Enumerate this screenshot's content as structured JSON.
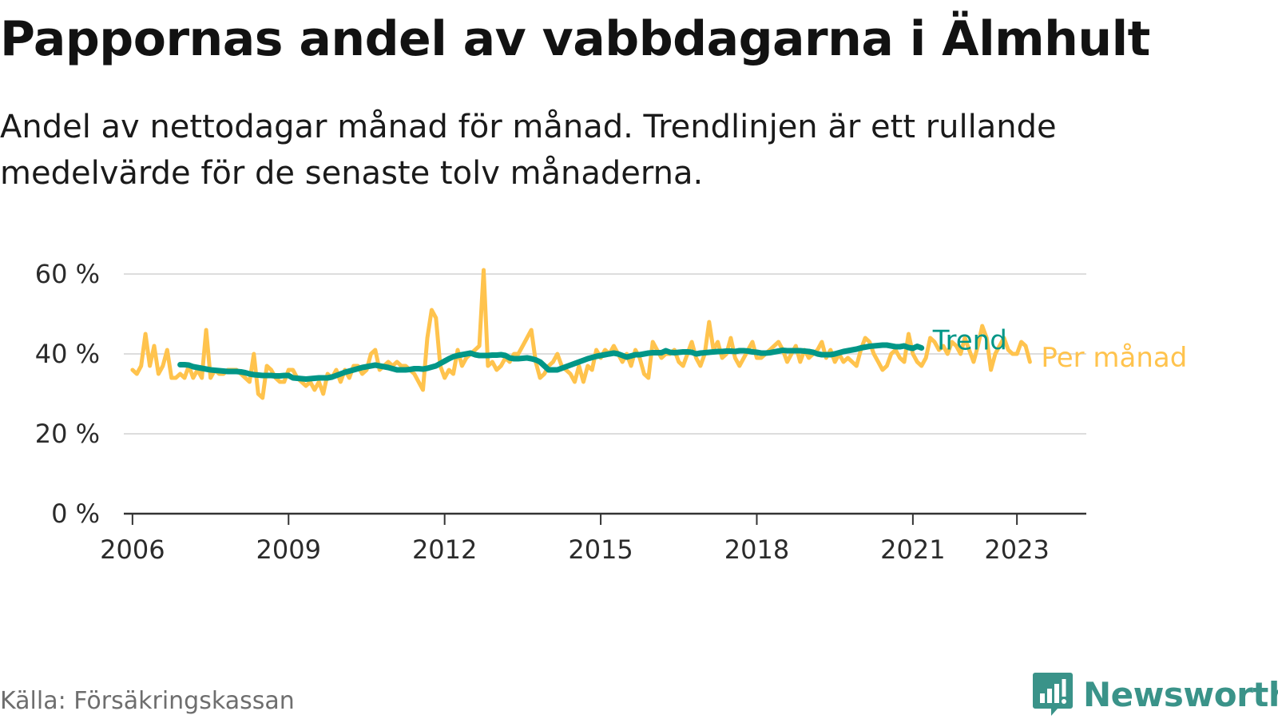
{
  "title": "Pappornas andel av vabbdagarna i Älmhult",
  "subtitle": "Andel av nettodagar månad för månad. Trendlinjen är ett rullande medelvärde för de senaste tolv månaderna.",
  "source": "Källa: Försäkringskassan",
  "brand": {
    "name": "Newsworthy",
    "icon": "newsworthy-logo-icon",
    "color": "#3a9389"
  },
  "chart_data": {
    "type": "line",
    "title": "Pappornas andel av vabbdagarna i Älmhult",
    "subtitle": "Andel av nettodagar månad för månad. Trendlinjen är ett rullande medelvärde för de senaste tolv månaderna.",
    "xlabel": "",
    "ylabel": "",
    "ylim": [
      0,
      60
    ],
    "y_ticks": [
      0,
      20,
      40,
      60
    ],
    "y_tick_labels": [
      "0 %",
      "20 %",
      "40 %",
      "60 %"
    ],
    "x_range": [
      "2005-11",
      "2024-05"
    ],
    "x_ticks": [
      "2006-01",
      "2009-01",
      "2012-01",
      "2015-01",
      "2018-01",
      "2021-01",
      "2023-01"
    ],
    "x_tick_labels": [
      "2006",
      "2009",
      "2012",
      "2015",
      "2018",
      "2021",
      "2023"
    ],
    "grid": "horizontal",
    "legend": "inline labels at line ends",
    "series": [
      {
        "name": "Per månad",
        "color": "#ffc34d",
        "x_start": "2006-01",
        "frequency": "monthly",
        "values": [
          36,
          35,
          37,
          45,
          37,
          42,
          35,
          37,
          41,
          34,
          34,
          35,
          34,
          37,
          34,
          36,
          34,
          46,
          34,
          36,
          35,
          35,
          36,
          36,
          36,
          35,
          34,
          33,
          40,
          30,
          29,
          37,
          36,
          34,
          33,
          33,
          36,
          36,
          34,
          33,
          32,
          33,
          31,
          33,
          30,
          35,
          34,
          36,
          33,
          36,
          34,
          37,
          37,
          35,
          36,
          40,
          41,
          36,
          37,
          38,
          37,
          38,
          37,
          37,
          36,
          35,
          33,
          31,
          44,
          51,
          49,
          37,
          34,
          36,
          35,
          41,
          37,
          39,
          40,
          41,
          42,
          61,
          37,
          38,
          36,
          37,
          39,
          38,
          40,
          40,
          42,
          44,
          46,
          38,
          34,
          35,
          37,
          38,
          40,
          37,
          36,
          35,
          33,
          37,
          33,
          37,
          36,
          41,
          39,
          41,
          40,
          42,
          40,
          38,
          40,
          37,
          41,
          39,
          35,
          34,
          43,
          41,
          39,
          40,
          40,
          41,
          38,
          37,
          40,
          43,
          39,
          37,
          40,
          48,
          41,
          43,
          39,
          40,
          44,
          39,
          37,
          39,
          41,
          43,
          39,
          39,
          40,
          41,
          42,
          43,
          41,
          38,
          40,
          42,
          38,
          41,
          39,
          40,
          41,
          43,
          39,
          41,
          38,
          40,
          38,
          39,
          38,
          37,
          41,
          44,
          43,
          40,
          38,
          36,
          37,
          40,
          41,
          39,
          38,
          45,
          40,
          38,
          37,
          39,
          44,
          43,
          41,
          42,
          40,
          43,
          42,
          40,
          44,
          41,
          38,
          42,
          47,
          44,
          36,
          40,
          42,
          44,
          41,
          40,
          40,
          43,
          42,
          38
        ]
      },
      {
        "name": "Trend",
        "color": "#009687",
        "x_start": "2006-12",
        "frequency": "monthly",
        "values": [
          37.3,
          37.3,
          37.2,
          36.8,
          36.6,
          36.4,
          36.2,
          36.0,
          35.9,
          35.8,
          35.7,
          35.6,
          35.6,
          35.6,
          35.5,
          35.3,
          35.0,
          34.8,
          34.7,
          34.6,
          34.6,
          34.6,
          34.5,
          34.5,
          34.6,
          34.6,
          34.0,
          33.9,
          33.8,
          33.7,
          33.8,
          33.9,
          34.0,
          34.0,
          34.0,
          34.2,
          34.6,
          35.0,
          35.4,
          35.7,
          36.0,
          36.3,
          36.6,
          36.8,
          37.0,
          37.2,
          37.0,
          36.8,
          36.6,
          36.3,
          36.0,
          36.0,
          36.0,
          36.1,
          36.3,
          36.3,
          36.2,
          36.4,
          36.7,
          37.0,
          37.6,
          38.2,
          38.8,
          39.3,
          39.6,
          39.8,
          40.0,
          40.2,
          39.8,
          39.6,
          39.6,
          39.6,
          39.7,
          39.7,
          39.8,
          39.6,
          39.0,
          38.8,
          38.8,
          38.9,
          39.0,
          38.8,
          38.5,
          38.0,
          37.0,
          36.0,
          36.0,
          36.0,
          36.4,
          36.8,
          37.2,
          37.6,
          38.0,
          38.4,
          38.8,
          39.1,
          39.4,
          39.6,
          39.8,
          40.0,
          40.2,
          40.0,
          39.6,
          39.2,
          39.5,
          39.8,
          39.8,
          40.0,
          40.2,
          40.3,
          40.3,
          40.3,
          40.8,
          40.4,
          40.3,
          40.4,
          40.5,
          40.5,
          40.4,
          40.0,
          40.2,
          40.3,
          40.4,
          40.5,
          40.6,
          40.6,
          40.7,
          40.7,
          40.6,
          40.8,
          40.8,
          40.7,
          40.5,
          40.4,
          40.2,
          40.2,
          40.3,
          40.5,
          40.7,
          40.9,
          40.8,
          40.8,
          40.8,
          40.8,
          40.7,
          40.6,
          40.4,
          40.0,
          39.8,
          39.8,
          39.8,
          40.0,
          40.3,
          40.6,
          40.8,
          41.0,
          41.2,
          41.5,
          41.7,
          41.9,
          42.0,
          42.1,
          42.2,
          42.2,
          42.0,
          41.8,
          41.8,
          42.0,
          41.6,
          41.4,
          41.9,
          41.5
        ]
      }
    ]
  }
}
